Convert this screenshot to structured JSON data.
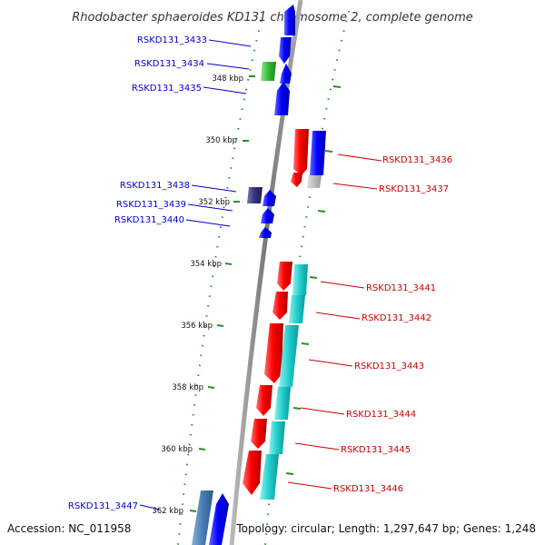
{
  "title": "Rhodobacter sphaeroides KD131 chromosome 2, complete genome",
  "footer": {
    "accession": "Accession: NC_011958",
    "topology": "Topology: circular; Length: 1,297,647 bp; Genes: 1,248"
  },
  "colors": {
    "forward_label": "#0000cc",
    "reverse_label": "#cc0000",
    "backbone": "#888888",
    "tick": "#2e8b2e"
  },
  "ticks": [
    "348 kbp",
    "350 kbp",
    "352 kbp",
    "354 kbp",
    "356 kbp",
    "358 kbp",
    "360 kbp",
    "362 kbp"
  ],
  "forward_genes": [
    {
      "label": "RSKD131_3433"
    },
    {
      "label": "RSKD131_3434"
    },
    {
      "label": "RSKD131_3435"
    },
    {
      "label": "RSKD131_3438"
    },
    {
      "label": "RSKD131_3439"
    },
    {
      "label": "RSKD131_3440"
    },
    {
      "label": "RSKD131_3447"
    }
  ],
  "reverse_genes": [
    {
      "label": "RSKD131_3436"
    },
    {
      "label": "RSKD131_3437"
    },
    {
      "label": "RSKD131_3441"
    },
    {
      "label": "RSKD131_3442"
    },
    {
      "label": "RSKD131_3443"
    },
    {
      "label": "RSKD131_3444"
    },
    {
      "label": "RSKD131_3445"
    },
    {
      "label": "RSKD131_3446"
    }
  ]
}
